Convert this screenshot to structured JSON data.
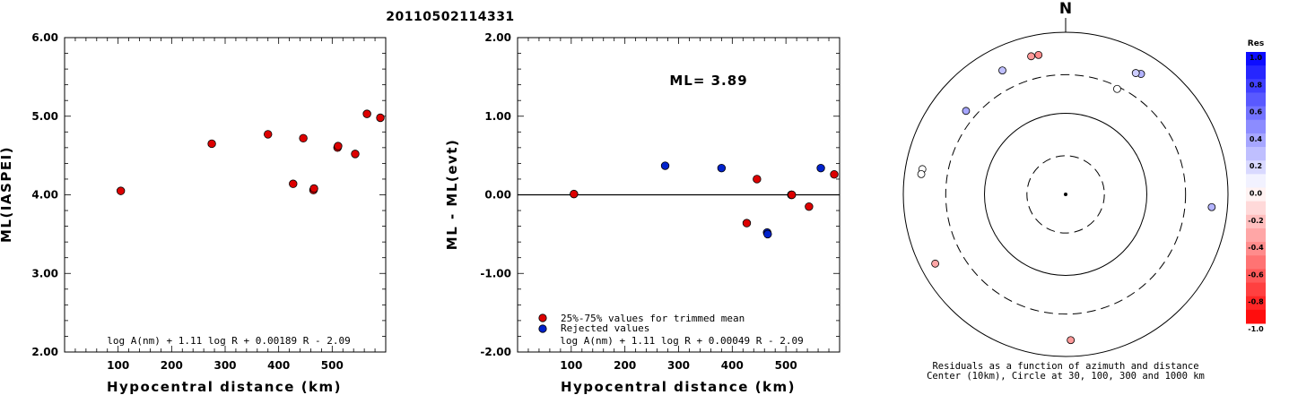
{
  "title": "20110502114331",
  "colors": {
    "accepted": "#dd0000",
    "rejected": "#0022cc",
    "axis": "#000000"
  },
  "chart_data": [
    {
      "type": "scatter",
      "xlabel": "Hypocentral distance (km)",
      "ylabel": "ML(IASPEI)",
      "xlim": [
        0,
        600
      ],
      "ylim": [
        2.0,
        6.0
      ],
      "xticks": [
        "100",
        "200",
        "300",
        "400",
        "500"
      ],
      "yticks": [
        "2.00",
        "3.00",
        "4.00",
        "5.00",
        "6.00"
      ],
      "annotation": "log A(nm) + 1.11 log R + 0.00189 R - 2.09",
      "points": [
        {
          "x": 105,
          "y": 4.05
        },
        {
          "x": 275,
          "y": 4.65
        },
        {
          "x": 380,
          "y": 4.77
        },
        {
          "x": 427,
          "y": 4.14
        },
        {
          "x": 446,
          "y": 4.72
        },
        {
          "x": 465,
          "y": 4.06
        },
        {
          "x": 466,
          "y": 4.08
        },
        {
          "x": 510,
          "y": 4.6
        },
        {
          "x": 511,
          "y": 4.62
        },
        {
          "x": 543,
          "y": 4.52
        },
        {
          "x": 565,
          "y": 5.03
        },
        {
          "x": 590,
          "y": 4.98
        }
      ]
    },
    {
      "type": "scatter",
      "xlabel": "Hypocentral distance (km)",
      "ylabel": "ML - ML(evt)",
      "xlim": [
        0,
        600
      ],
      "ylim": [
        -2.0,
        2.0
      ],
      "xticks": [
        "100",
        "200",
        "300",
        "400",
        "500"
      ],
      "yticks": [
        "-2.00",
        "-1.00",
        "0.00",
        "1.00",
        "2.00"
      ],
      "ml_label": "ML= 3.89",
      "zero_line": true,
      "legend": [
        {
          "label": "25%-75% values for trimmed mean",
          "status": "accepted"
        },
        {
          "label": "Rejected values",
          "status": "rejected"
        }
      ],
      "annotation": "log A(nm) + 1.11 log R + 0.00049 R - 2.09",
      "points": [
        {
          "x": 105,
          "y": 0.01,
          "status": "accepted"
        },
        {
          "x": 275,
          "y": 0.37,
          "status": "rejected"
        },
        {
          "x": 380,
          "y": 0.34,
          "status": "rejected"
        },
        {
          "x": 427,
          "y": -0.36,
          "status": "accepted"
        },
        {
          "x": 446,
          "y": 0.2,
          "status": "accepted"
        },
        {
          "x": 465,
          "y": -0.48,
          "status": "rejected"
        },
        {
          "x": 466,
          "y": -0.5,
          "status": "rejected"
        },
        {
          "x": 510,
          "y": 0.0,
          "status": "accepted"
        },
        {
          "x": 511,
          "y": 0.0,
          "status": "accepted"
        },
        {
          "x": 543,
          "y": -0.15,
          "status": "accepted"
        },
        {
          "x": 565,
          "y": 0.34,
          "status": "rejected"
        },
        {
          "x": 590,
          "y": 0.26,
          "status": "accepted"
        }
      ]
    },
    {
      "type": "scatter",
      "subtype": "polar",
      "north_label": "N",
      "caption_line1": "Residuals as a function of azimuth and distance",
      "caption_line2": "Center (10km), Circle at 30, 100, 300 and 1000 km",
      "rings_km": [
        30,
        100,
        300,
        1000
      ],
      "ring_styles": [
        "dashed",
        "solid",
        "dashed",
        "solid"
      ],
      "colorbar": {
        "title": "Res",
        "ticks": [
          "1.0",
          "0.8",
          "0.6",
          "0.4",
          "0.2",
          "0.0",
          "-0.2",
          "-0.4",
          "-0.6",
          "-0.8",
          "-1.0"
        ],
        "range": [
          -1.0,
          1.0
        ]
      },
      "points": [
        {
          "azimuth": 346,
          "distance_km": 570,
          "residual": -0.4
        },
        {
          "azimuth": 349,
          "distance_km": 565,
          "residual": -0.45
        },
        {
          "azimuth": 333,
          "distance_km": 520,
          "residual": 0.25
        },
        {
          "azimuth": 310,
          "distance_km": 400,
          "residual": 0.35
        },
        {
          "azimuth": 32,
          "distance_km": 565,
          "residual": 0.3
        },
        {
          "azimuth": 30,
          "distance_km": 535,
          "residual": 0.2
        },
        {
          "azimuth": 26,
          "distance_km": 280,
          "residual": 0.0
        },
        {
          "azimuth": 280,
          "distance_km": 620,
          "residual": 0.0
        },
        {
          "azimuth": 278,
          "distance_km": 625,
          "residual": 0.0
        },
        {
          "azimuth": 95,
          "distance_km": 640,
          "residual": 0.3
        },
        {
          "azimuth": 242,
          "distance_km": 660,
          "residual": -0.35
        },
        {
          "azimuth": 178,
          "distance_km": 630,
          "residual": -0.4
        }
      ]
    }
  ]
}
